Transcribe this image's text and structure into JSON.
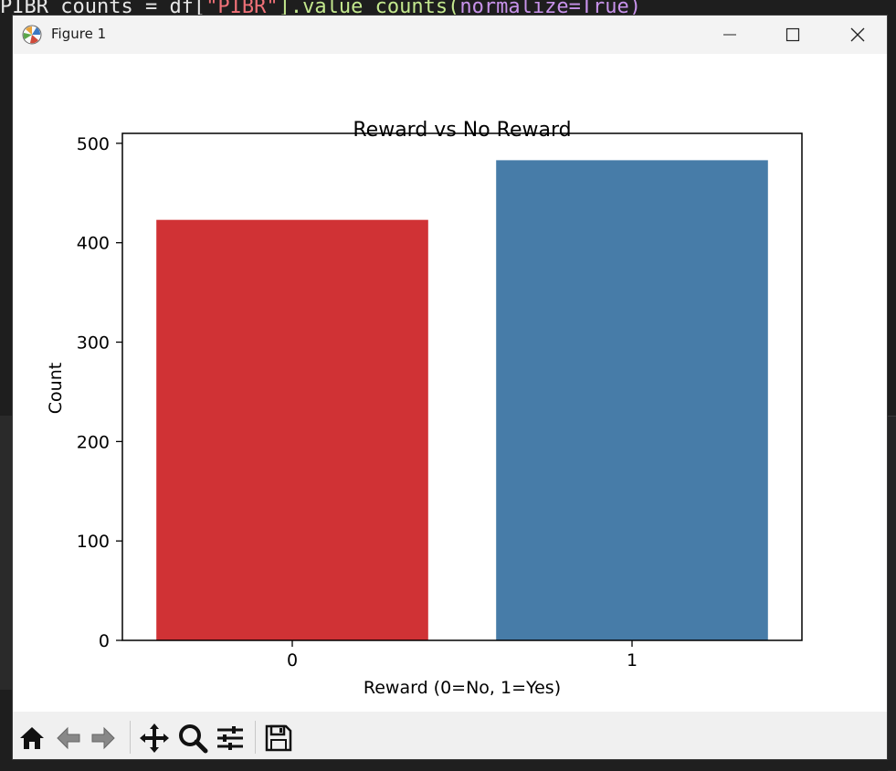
{
  "window": {
    "title": "Figure 1"
  },
  "background_code": {
    "line1_a": "PIBR_counts",
    "line1_b": " = df[",
    "line1_c": "\"PIBR\"",
    "line1_d": "].value_counts(",
    "line1_e": "normalize=True)"
  },
  "toolbar": {
    "buttons": [
      "home-icon",
      "back-icon",
      "forward-icon",
      "pan-icon",
      "zoom-icon",
      "configure-icon",
      "save-icon"
    ]
  },
  "chart_data": {
    "type": "bar",
    "title": "Reward vs No Reward",
    "xlabel": "Reward (0=No, 1=Yes)",
    "ylabel": "Count",
    "categories": [
      "0",
      "1"
    ],
    "values": [
      423,
      483
    ],
    "colors": [
      "#d03235",
      "#477ca8"
    ],
    "ylim": [
      0,
      510
    ],
    "yticks": [
      0,
      100,
      200,
      300,
      400,
      500
    ],
    "grid": false
  }
}
